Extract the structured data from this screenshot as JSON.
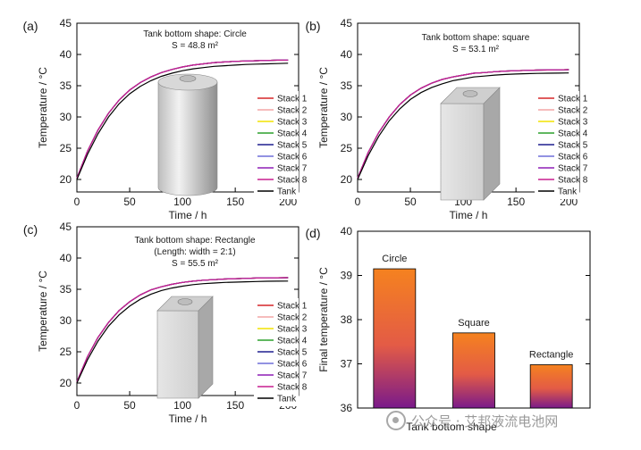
{
  "watermark": "公众号 · 艾邦液流电池网",
  "chart_data": [
    {
      "type": "line",
      "panel_label": "(a)",
      "annotation_line1": "Tank bottom shape: Circle",
      "annotation_line2": "S = 48.8 m²",
      "xlabel": "Time / h",
      "ylabel": "Temperature / °C",
      "xlim": [
        0,
        210
      ],
      "ylim": [
        18,
        45
      ],
      "xticks": [
        0,
        50,
        100,
        150,
        200
      ],
      "yticks": [
        20,
        25,
        30,
        35,
        40,
        45
      ],
      "legend_position": "right",
      "x": [
        0,
        10,
        20,
        30,
        40,
        50,
        60,
        70,
        80,
        90,
        100,
        110,
        120,
        130,
        140,
        150,
        160,
        170,
        180,
        190,
        200
      ],
      "series": [
        {
          "name": "Stack 1",
          "color": "#d62728",
          "values": [
            20.2,
            24.5,
            27.9,
            30.6,
            32.7,
            34.3,
            35.5,
            36.4,
            37.1,
            37.6,
            38.0,
            38.3,
            38.5,
            38.7,
            38.8,
            38.9,
            38.95,
            39.0,
            39.05,
            39.08,
            39.1
          ]
        },
        {
          "name": "Stack 2",
          "color": "#f4a6a6",
          "values": [
            20.2,
            24.5,
            27.9,
            30.6,
            32.7,
            34.3,
            35.5,
            36.4,
            37.1,
            37.6,
            38.0,
            38.3,
            38.5,
            38.7,
            38.8,
            38.9,
            38.95,
            39.0,
            39.05,
            39.08,
            39.1
          ]
        },
        {
          "name": "Stack 3",
          "color": "#f2e400",
          "values": [
            20.2,
            24.5,
            27.9,
            30.6,
            32.7,
            34.3,
            35.5,
            36.4,
            37.1,
            37.6,
            38.0,
            38.3,
            38.5,
            38.7,
            38.8,
            38.9,
            38.95,
            39.0,
            39.05,
            39.08,
            39.1
          ]
        },
        {
          "name": "Stack 4",
          "color": "#2ca02c",
          "values": [
            20.2,
            24.5,
            27.9,
            30.6,
            32.7,
            34.3,
            35.5,
            36.4,
            37.1,
            37.6,
            38.0,
            38.3,
            38.5,
            38.7,
            38.8,
            38.9,
            38.95,
            39.0,
            39.05,
            39.08,
            39.1
          ]
        },
        {
          "name": "Stack 5",
          "color": "#1f1f8f",
          "values": [
            20.2,
            24.5,
            27.9,
            30.6,
            32.7,
            34.3,
            35.5,
            36.4,
            37.1,
            37.6,
            38.0,
            38.3,
            38.5,
            38.7,
            38.8,
            38.9,
            38.95,
            39.0,
            39.05,
            39.08,
            39.1
          ]
        },
        {
          "name": "Stack 6",
          "color": "#6f6fd8",
          "values": [
            20.2,
            24.5,
            27.9,
            30.6,
            32.7,
            34.3,
            35.5,
            36.4,
            37.1,
            37.6,
            38.0,
            38.3,
            38.5,
            38.7,
            38.8,
            38.9,
            38.95,
            39.0,
            39.05,
            39.08,
            39.1
          ]
        },
        {
          "name": "Stack 7",
          "color": "#8e1fb5",
          "values": [
            20.2,
            24.5,
            27.9,
            30.6,
            32.7,
            34.3,
            35.5,
            36.4,
            37.1,
            37.6,
            38.0,
            38.3,
            38.5,
            38.7,
            38.8,
            38.9,
            38.95,
            39.0,
            39.05,
            39.08,
            39.1
          ]
        },
        {
          "name": "Stack 8",
          "color": "#c71f8f",
          "values": [
            20.2,
            24.5,
            27.9,
            30.6,
            32.7,
            34.3,
            35.5,
            36.4,
            37.1,
            37.6,
            38.0,
            38.3,
            38.5,
            38.7,
            38.8,
            38.9,
            38.95,
            39.0,
            39.05,
            39.08,
            39.1
          ]
        },
        {
          "name": "Tank",
          "color": "#000000",
          "values": [
            20.0,
            24.0,
            27.3,
            30.0,
            32.1,
            33.7,
            34.9,
            35.8,
            36.5,
            37.0,
            37.4,
            37.7,
            37.9,
            38.1,
            38.2,
            38.3,
            38.4,
            38.45,
            38.5,
            38.55,
            38.6
          ]
        }
      ]
    },
    {
      "type": "line",
      "panel_label": "(b)",
      "annotation_line1": "Tank bottom shape: square",
      "annotation_line2": "S = 53.1 m²",
      "xlabel": "Time / h",
      "ylabel": "Temperature / °C",
      "xlim": [
        0,
        210
      ],
      "ylim": [
        18,
        45
      ],
      "xticks": [
        0,
        50,
        100,
        150,
        200
      ],
      "yticks": [
        20,
        25,
        30,
        35,
        40,
        45
      ],
      "legend_position": "right",
      "x": [
        0,
        10,
        20,
        30,
        40,
        50,
        60,
        70,
        80,
        90,
        100,
        110,
        120,
        130,
        140,
        150,
        160,
        170,
        180,
        190,
        200
      ],
      "series": [
        {
          "name": "Stack 1",
          "color": "#d62728",
          "values": [
            20.2,
            24.3,
            27.5,
            30.0,
            32.0,
            33.5,
            34.6,
            35.4,
            36.0,
            36.4,
            36.7,
            37.0,
            37.1,
            37.25,
            37.35,
            37.4,
            37.45,
            37.5,
            37.52,
            37.55,
            37.57
          ]
        },
        {
          "name": "Stack 2",
          "color": "#f4a6a6",
          "values": [
            20.2,
            24.3,
            27.5,
            30.0,
            32.0,
            33.5,
            34.6,
            35.4,
            36.0,
            36.4,
            36.7,
            37.0,
            37.1,
            37.25,
            37.35,
            37.4,
            37.45,
            37.5,
            37.52,
            37.55,
            37.57
          ]
        },
        {
          "name": "Stack 3",
          "color": "#f2e400",
          "values": [
            20.2,
            24.3,
            27.5,
            30.0,
            32.0,
            33.5,
            34.6,
            35.4,
            36.0,
            36.4,
            36.7,
            37.0,
            37.1,
            37.25,
            37.35,
            37.4,
            37.45,
            37.5,
            37.52,
            37.55,
            37.57
          ]
        },
        {
          "name": "Stack 4",
          "color": "#2ca02c",
          "values": [
            20.2,
            24.3,
            27.5,
            30.0,
            32.0,
            33.5,
            34.6,
            35.4,
            36.0,
            36.4,
            36.7,
            37.0,
            37.1,
            37.25,
            37.35,
            37.4,
            37.45,
            37.5,
            37.52,
            37.55,
            37.57
          ]
        },
        {
          "name": "Stack 5",
          "color": "#1f1f8f",
          "values": [
            20.2,
            24.3,
            27.5,
            30.0,
            32.0,
            33.5,
            34.6,
            35.4,
            36.0,
            36.4,
            36.7,
            37.0,
            37.1,
            37.25,
            37.35,
            37.4,
            37.45,
            37.5,
            37.52,
            37.55,
            37.57
          ]
        },
        {
          "name": "Stack 6",
          "color": "#6f6fd8",
          "values": [
            20.2,
            24.3,
            27.5,
            30.0,
            32.0,
            33.5,
            34.6,
            35.4,
            36.0,
            36.4,
            36.7,
            37.0,
            37.1,
            37.25,
            37.35,
            37.4,
            37.45,
            37.5,
            37.52,
            37.55,
            37.57
          ]
        },
        {
          "name": "Stack 7",
          "color": "#8e1fb5",
          "values": [
            20.2,
            24.3,
            27.5,
            30.0,
            32.0,
            33.5,
            34.6,
            35.4,
            36.0,
            36.4,
            36.7,
            37.0,
            37.1,
            37.25,
            37.35,
            37.4,
            37.45,
            37.5,
            37.52,
            37.55,
            37.57
          ]
        },
        {
          "name": "Stack 8",
          "color": "#c71f8f",
          "values": [
            20.2,
            24.3,
            27.5,
            30.0,
            32.0,
            33.5,
            34.6,
            35.4,
            36.0,
            36.4,
            36.7,
            37.0,
            37.1,
            37.25,
            37.35,
            37.4,
            37.45,
            37.5,
            37.52,
            37.55,
            37.57
          ]
        },
        {
          "name": "Tank",
          "color": "#000000",
          "values": [
            20.0,
            23.8,
            26.9,
            29.4,
            31.3,
            32.8,
            33.9,
            34.7,
            35.3,
            35.8,
            36.1,
            36.4,
            36.55,
            36.7,
            36.8,
            36.87,
            36.93,
            36.97,
            37.0,
            37.02,
            37.04
          ]
        }
      ]
    },
    {
      "type": "line",
      "panel_label": "(c)",
      "annotation_line1": "Tank bottom shape: Rectangle",
      "annotation_line2": "(Length: width = 2:1)",
      "annotation_line3": "S = 55.5 m²",
      "xlabel": "Time / h",
      "ylabel": "Temperature / °C",
      "xlim": [
        0,
        210
      ],
      "ylim": [
        18,
        45
      ],
      "xticks": [
        0,
        50,
        100,
        150,
        200
      ],
      "yticks": [
        20,
        25,
        30,
        35,
        40,
        45
      ],
      "legend_position": "right",
      "x": [
        0,
        10,
        20,
        30,
        40,
        50,
        60,
        70,
        80,
        90,
        100,
        110,
        120,
        130,
        140,
        150,
        160,
        170,
        180,
        190,
        200
      ],
      "series": [
        {
          "name": "Stack 1",
          "color": "#d62728",
          "values": [
            20.2,
            24.2,
            27.3,
            29.7,
            31.6,
            33.0,
            34.1,
            34.9,
            35.4,
            35.8,
            36.1,
            36.3,
            36.45,
            36.55,
            36.65,
            36.7,
            36.75,
            36.8,
            36.82,
            36.84,
            36.86
          ]
        },
        {
          "name": "Stack 2",
          "color": "#f4a6a6",
          "values": [
            20.2,
            24.2,
            27.3,
            29.7,
            31.6,
            33.0,
            34.1,
            34.9,
            35.4,
            35.8,
            36.1,
            36.3,
            36.45,
            36.55,
            36.65,
            36.7,
            36.75,
            36.8,
            36.82,
            36.84,
            36.86
          ]
        },
        {
          "name": "Stack 3",
          "color": "#f2e400",
          "values": [
            20.2,
            24.2,
            27.3,
            29.7,
            31.6,
            33.0,
            34.1,
            34.9,
            35.4,
            35.8,
            36.1,
            36.3,
            36.45,
            36.55,
            36.65,
            36.7,
            36.75,
            36.8,
            36.82,
            36.84,
            36.86
          ]
        },
        {
          "name": "Stack 4",
          "color": "#2ca02c",
          "values": [
            20.2,
            24.2,
            27.3,
            29.7,
            31.6,
            33.0,
            34.1,
            34.9,
            35.4,
            35.8,
            36.1,
            36.3,
            36.45,
            36.55,
            36.65,
            36.7,
            36.75,
            36.8,
            36.82,
            36.84,
            36.86
          ]
        },
        {
          "name": "Stack 5",
          "color": "#1f1f8f",
          "values": [
            20.2,
            24.2,
            27.3,
            29.7,
            31.6,
            33.0,
            34.1,
            34.9,
            35.4,
            35.8,
            36.1,
            36.3,
            36.45,
            36.55,
            36.65,
            36.7,
            36.75,
            36.8,
            36.82,
            36.84,
            36.86
          ]
        },
        {
          "name": "Stack 6",
          "color": "#6f6fd8",
          "values": [
            20.2,
            24.2,
            27.3,
            29.7,
            31.6,
            33.0,
            34.1,
            34.9,
            35.4,
            35.8,
            36.1,
            36.3,
            36.45,
            36.55,
            36.65,
            36.7,
            36.75,
            36.8,
            36.82,
            36.84,
            36.86
          ]
        },
        {
          "name": "Stack 7",
          "color": "#8e1fb5",
          "values": [
            20.2,
            24.2,
            27.3,
            29.7,
            31.6,
            33.0,
            34.1,
            34.9,
            35.4,
            35.8,
            36.1,
            36.3,
            36.45,
            36.55,
            36.65,
            36.7,
            36.75,
            36.8,
            36.82,
            36.84,
            36.86
          ]
        },
        {
          "name": "Stack 8",
          "color": "#c71f8f",
          "values": [
            20.2,
            24.2,
            27.3,
            29.7,
            31.6,
            33.0,
            34.1,
            34.9,
            35.4,
            35.8,
            36.1,
            36.3,
            36.45,
            36.55,
            36.65,
            36.7,
            36.75,
            36.8,
            36.82,
            36.84,
            36.86
          ]
        },
        {
          "name": "Tank",
          "color": "#000000",
          "values": [
            20.0,
            23.7,
            26.7,
            29.1,
            30.9,
            32.3,
            33.4,
            34.2,
            34.8,
            35.2,
            35.5,
            35.75,
            35.9,
            36.0,
            36.1,
            36.15,
            36.2,
            36.25,
            36.28,
            36.3,
            36.32
          ]
        }
      ]
    },
    {
      "type": "bar",
      "panel_label": "(d)",
      "xlabel": "Tank bottom shape",
      "ylabel": "Final temperature / °C",
      "ylim": [
        36,
        40
      ],
      "yticks": [
        36,
        37,
        38,
        39,
        40
      ],
      "categories": [
        "Circle",
        "Square",
        "Rectangle"
      ],
      "values": [
        39.15,
        37.7,
        36.98
      ],
      "gradient_top": "#f5821f",
      "gradient_bottom": "#7a1a8a"
    }
  ]
}
